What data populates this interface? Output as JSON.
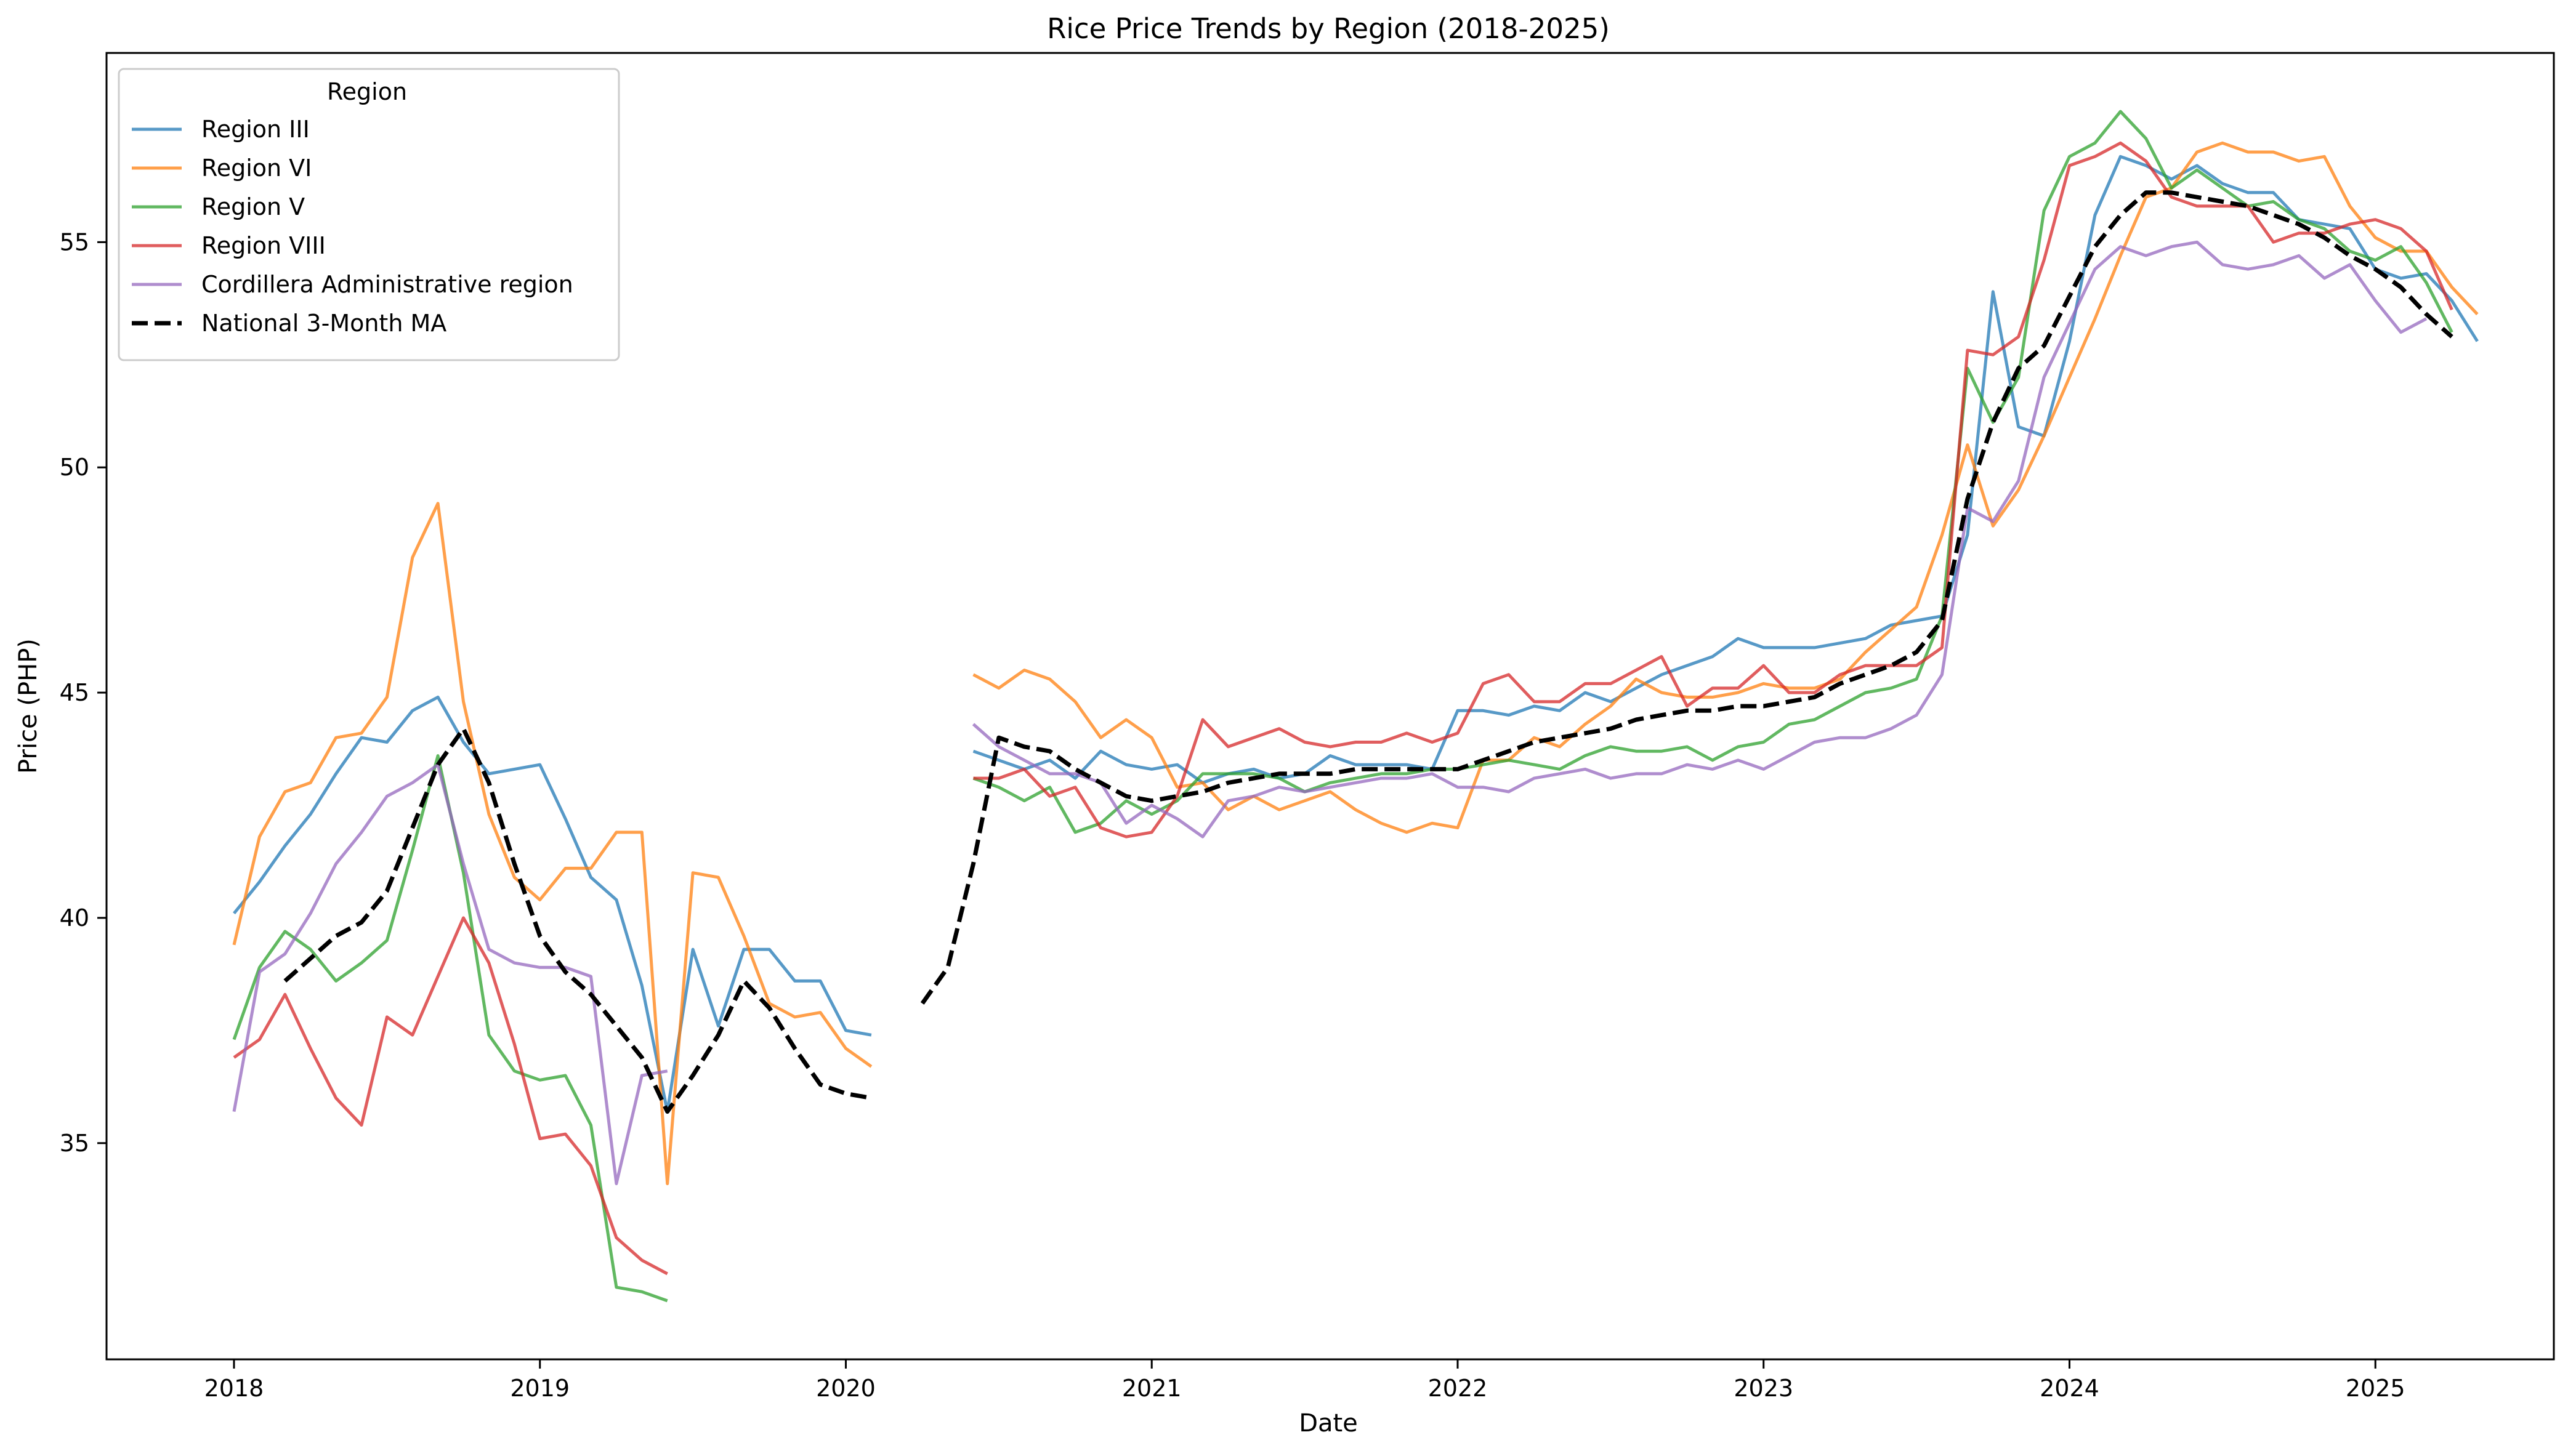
{
  "chart_data": {
    "type": "line",
    "title": "Rice Price Trends by Region (2018-2025)",
    "xlabel": "Date",
    "ylabel": "Price (PHP)",
    "x_start": "2018-01",
    "xlim": [
      "2017-08",
      "2025-08"
    ],
    "ylim": [
      30.2,
      59.2
    ],
    "xticks": [
      "2018",
      "2019",
      "2020",
      "2021",
      "2022",
      "2023",
      "2024",
      "2025"
    ],
    "yticks": [
      35,
      40,
      45,
      50,
      55
    ],
    "grid": false,
    "legend": {
      "title": "Region",
      "position": "top-left"
    },
    "series": [
      {
        "name": "Region III",
        "color": "#1f77b4",
        "values": [
          40.1,
          40.8,
          41.6,
          42.3,
          43.2,
          44.0,
          43.9,
          44.6,
          44.9,
          43.9,
          43.2,
          43.3,
          43.4,
          42.2,
          40.9,
          40.4,
          38.5,
          35.7,
          39.3,
          37.6,
          39.3,
          39.3,
          38.6,
          38.6,
          37.5,
          37.4,
          null,
          null,
          null,
          43.7,
          43.5,
          43.3,
          43.5,
          43.1,
          43.7,
          43.4,
          43.3,
          43.4,
          43.0,
          43.2,
          43.3,
          43.1,
          43.2,
          43.6,
          43.4,
          43.4,
          43.4,
          43.3,
          44.6,
          44.6,
          44.5,
          44.7,
          44.6,
          45.0,
          44.8,
          45.1,
          45.4,
          45.6,
          45.8,
          46.2,
          46.0,
          46.0,
          46.0,
          46.1,
          46.2,
          46.5,
          46.6,
          46.7,
          48.5,
          53.9,
          50.9,
          50.7,
          52.8,
          55.6,
          56.9,
          56.7,
          56.4,
          56.7,
          56.3,
          56.1,
          56.1,
          55.5,
          55.4,
          55.3,
          54.4,
          54.2,
          54.3,
          53.7,
          52.8
        ]
      },
      {
        "name": "Region VI",
        "color": "#ff7f0e",
        "values": [
          39.4,
          41.8,
          42.8,
          43.0,
          44.0,
          44.1,
          44.9,
          48.0,
          49.2,
          44.8,
          42.3,
          40.9,
          40.4,
          41.1,
          41.1,
          41.9,
          41.9,
          34.1,
          41.0,
          40.9,
          39.6,
          38.1,
          37.8,
          37.9,
          37.1,
          36.7,
          null,
          null,
          null,
          45.4,
          45.1,
          45.5,
          45.3,
          44.8,
          44.0,
          44.4,
          44.0,
          42.9,
          43.0,
          42.4,
          42.7,
          42.4,
          42.6,
          42.8,
          42.4,
          42.1,
          41.9,
          42.1,
          42.0,
          43.5,
          43.5,
          44.0,
          43.8,
          44.3,
          44.7,
          45.3,
          45.0,
          44.9,
          44.9,
          45.0,
          45.2,
          45.1,
          45.1,
          45.3,
          45.9,
          46.4,
          46.9,
          48.5,
          50.5,
          48.7,
          49.5,
          50.7,
          52.0,
          53.3,
          54.7,
          56.0,
          56.2,
          57.0,
          57.2,
          57.0,
          57.0,
          56.8,
          56.9,
          55.8,
          55.1,
          54.8,
          54.8,
          54.0,
          53.4
        ]
      },
      {
        "name": "Region V",
        "color": "#2ca02c",
        "values": [
          37.3,
          38.9,
          39.7,
          39.3,
          38.6,
          39.0,
          39.5,
          41.5,
          43.6,
          41.0,
          37.4,
          36.6,
          36.4,
          36.5,
          35.4,
          31.8,
          31.7,
          31.5,
          null,
          null,
          null,
          null,
          null,
          null,
          null,
          null,
          null,
          null,
          null,
          43.1,
          42.9,
          42.6,
          42.9,
          41.9,
          42.1,
          42.6,
          42.3,
          42.6,
          43.2,
          43.2,
          43.2,
          43.1,
          42.8,
          43.0,
          43.1,
          43.2,
          43.2,
          43.3,
          43.3,
          43.4,
          43.5,
          43.4,
          43.3,
          43.6,
          43.8,
          43.7,
          43.7,
          43.8,
          43.5,
          43.8,
          43.9,
          44.3,
          44.4,
          44.7,
          45.0,
          45.1,
          45.3,
          46.7,
          52.2,
          51.0,
          52.0,
          55.7,
          56.9,
          57.2,
          57.9,
          57.3,
          56.2,
          56.6,
          56.2,
          55.8,
          55.9,
          55.5,
          55.3,
          54.8,
          54.6,
          54.9,
          54.1,
          53.0
        ]
      },
      {
        "name": "Region VIII",
        "color": "#d62728",
        "values": [
          36.9,
          37.3,
          38.3,
          37.1,
          36.0,
          35.4,
          37.8,
          37.4,
          38.7,
          40.0,
          39.0,
          37.2,
          35.1,
          35.2,
          34.5,
          32.9,
          32.4,
          32.1,
          null,
          null,
          null,
          null,
          null,
          null,
          null,
          null,
          null,
          null,
          null,
          43.1,
          43.1,
          43.3,
          42.7,
          42.9,
          42.0,
          41.8,
          41.9,
          42.7,
          44.4,
          43.8,
          44.0,
          44.2,
          43.9,
          43.8,
          43.9,
          43.9,
          44.1,
          43.9,
          44.1,
          45.2,
          45.4,
          44.8,
          44.8,
          45.2,
          45.2,
          45.5,
          45.8,
          44.7,
          45.1,
          45.1,
          45.6,
          45.0,
          45.0,
          45.4,
          45.6,
          45.6,
          45.6,
          46.0,
          52.6,
          52.5,
          52.9,
          54.6,
          56.7,
          56.9,
          57.2,
          56.8,
          56.0,
          55.8,
          55.8,
          55.8,
          55.0,
          55.2,
          55.2,
          55.4,
          55.5,
          55.3,
          54.8,
          53.5
        ]
      },
      {
        "name": "Cordillera Administrative region",
        "color": "#9467bd",
        "values": [
          35.7,
          38.8,
          39.2,
          40.1,
          41.2,
          41.9,
          42.7,
          43.0,
          43.4,
          41.2,
          39.3,
          39.0,
          38.9,
          38.9,
          38.7,
          34.1,
          36.5,
          36.6,
          null,
          null,
          null,
          null,
          null,
          null,
          null,
          null,
          null,
          null,
          null,
          44.3,
          43.8,
          43.5,
          43.2,
          43.2,
          43.0,
          42.1,
          42.5,
          42.2,
          41.8,
          42.6,
          42.7,
          42.9,
          42.8,
          42.9,
          43.0,
          43.1,
          43.1,
          43.2,
          42.9,
          42.9,
          42.8,
          43.1,
          43.2,
          43.3,
          43.1,
          43.2,
          43.2,
          43.4,
          43.3,
          43.5,
          43.3,
          43.6,
          43.9,
          44.0,
          44.0,
          44.2,
          44.5,
          45.4,
          49.1,
          48.8,
          49.7,
          52.0,
          53.2,
          54.4,
          54.9,
          54.7,
          54.9,
          55.0,
          54.5,
          54.4,
          54.5,
          54.7,
          54.2,
          54.5,
          53.7,
          53.0,
          53.3
        ]
      },
      {
        "name": "National 3-Month MA",
        "color": "#000000",
        "dashed": true,
        "values": [
          null,
          null,
          38.6,
          39.1,
          39.6,
          39.9,
          40.6,
          42.0,
          43.4,
          44.2,
          43.0,
          41.2,
          39.6,
          38.8,
          38.3,
          37.6,
          36.9,
          35.7,
          36.5,
          37.4,
          38.6,
          38.0,
          37.1,
          36.3,
          36.1,
          36.0,
          null,
          38.1,
          38.9,
          41.2,
          44.0,
          43.8,
          43.7,
          43.3,
          43.0,
          42.7,
          42.6,
          42.7,
          42.8,
          43.0,
          43.1,
          43.2,
          43.2,
          43.2,
          43.3,
          43.3,
          43.3,
          43.3,
          43.3,
          43.5,
          43.7,
          43.9,
          44.0,
          44.1,
          44.2,
          44.4,
          44.5,
          44.6,
          44.6,
          44.7,
          44.7,
          44.8,
          44.9,
          45.2,
          45.4,
          45.6,
          45.9,
          46.6,
          49.3,
          51.0,
          52.2,
          52.7,
          53.8,
          54.9,
          55.6,
          56.1,
          56.1,
          56.0,
          55.9,
          55.8,
          55.6,
          55.4,
          55.1,
          54.7,
          54.4,
          54.0,
          53.4,
          52.9
        ]
      }
    ]
  }
}
